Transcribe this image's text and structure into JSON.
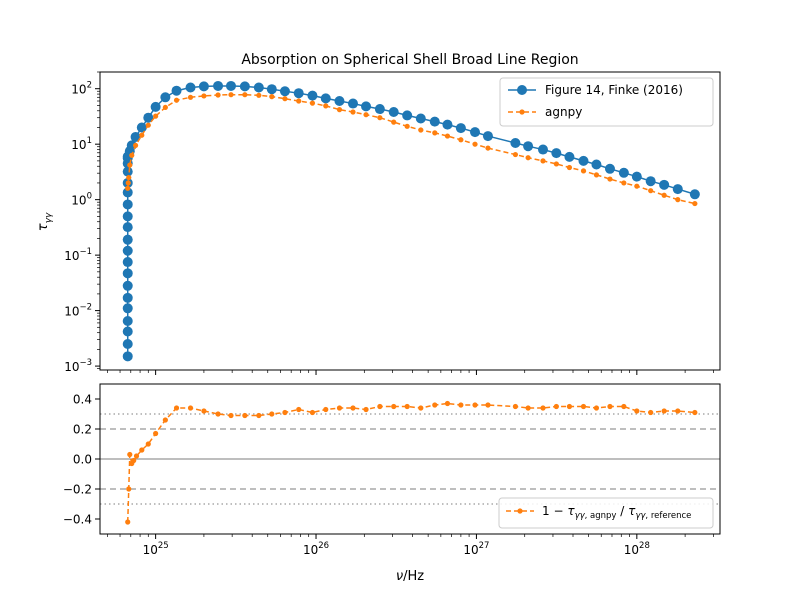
{
  "figure": {
    "title": "Absorption on Spherical Shell Broad Line Region",
    "ylabel_main": "τγγ",
    "xlabel_base": "ν",
    "xlabel_unit": "/Hz",
    "xtick_labels": [
      "10^25",
      "10^26",
      "10^27",
      "10^28"
    ],
    "ytick_labels_main": [
      "10^-3",
      "10^-2",
      "10^-1",
      "10^0",
      "10^1",
      "10^2"
    ],
    "ytick_labels_residual": [
      "0.4",
      "0.2",
      "0.0",
      "−0.2",
      "−0.4"
    ]
  },
  "colors": {
    "reference": "#1f77b4",
    "agnpy": "#ff7f0e",
    "zero_line": "#a9a9a9",
    "dashed_refs": "#a9a9a9",
    "dotted_refs": "#a9a9a9"
  },
  "legend": {
    "main": [
      "Figure 14, Finke (2016)",
      "agnpy"
    ],
    "residual": "1 − τγγ,agnpy / τγγ,reference",
    "main_position": "upper right",
    "residual_position": "lower right"
  },
  "chart_data": [
    {
      "type": "line",
      "title": "Absorption on Spherical Shell Broad Line Region",
      "xlabel": "ν / Hz",
      "ylabel": "τγγ",
      "xscale": "log",
      "yscale": "log",
      "xlim": [
        4.5e+24,
        3.3e+28
      ],
      "ylim": [
        0.00085,
        200
      ],
      "grid": false,
      "series": [
        {
          "name": "Figure 14, Finke (2016)",
          "style": "solid-circle",
          "x": [
            6.7e+24,
            6.7e+24,
            6.7e+24,
            6.7e+24,
            6.7e+24,
            6.7e+24,
            6.7e+24,
            6.7e+24,
            6.7e+24,
            6.7e+24,
            6.7e+24,
            6.7e+24,
            6.7e+24,
            6.7e+24,
            6.7e+24,
            6.7e+24,
            6.7e+24,
            6.7e+24,
            6.7e+24,
            6.7e+24,
            6.9e+24,
            7.1e+24,
            7.5e+24,
            8.2e+24,
            9e+24,
            1e+25,
            1.15e+25,
            1.35e+25,
            1.65e+25,
            2e+25,
            2.45e+25,
            2.95e+25,
            3.6e+25,
            4.4e+25,
            5.3e+25,
            6.4e+25,
            7.8e+25,
            9.5e+25,
            1.15e+26,
            1.4e+26,
            1.7e+26,
            2.05e+26,
            2.5e+26,
            3.05e+26,
            3.7e+26,
            4.5e+26,
            5.5e+26,
            6.6e+26,
            8e+26,
            9.8e+26,
            1.18e+27,
            1.75e+27,
            2.1e+27,
            2.6e+27,
            3.15e+27,
            3.8e+27,
            4.65e+27,
            5.6e+27,
            6.8e+27,
            8.3e+27,
            1e+28,
            1.22e+28,
            1.48e+28,
            1.8e+28,
            2.3e+28
          ],
          "y": [
            0.0015,
            0.0025,
            0.0042,
            0.0065,
            0.011,
            0.017,
            0.028,
            0.047,
            0.075,
            0.12,
            0.19,
            0.32,
            0.5,
            0.82,
            1.35,
            2.0,
            3.2,
            4.5,
            5.6,
            6.0,
            7.5,
            9.5,
            13.5,
            20,
            30,
            47,
            70,
            92,
            105,
            110,
            112,
            112,
            110,
            105,
            98,
            90,
            83,
            75,
            67,
            60,
            54,
            48,
            43,
            38,
            33,
            29,
            25.5,
            22.5,
            19.5,
            16.5,
            14,
            10.5,
            9.2,
            8.0,
            6.9,
            5.9,
            5.0,
            4.3,
            3.6,
            3.05,
            2.6,
            2.15,
            1.85,
            1.55,
            1.25
          ]
        },
        {
          "name": "agnpy",
          "style": "dashed-dot",
          "x": [
            6.7e+24,
            6.75e+24,
            6.8e+24,
            6.9e+24,
            7.1e+24,
            7.5e+24,
            8.2e+24,
            9e+24,
            1e+25,
            1.15e+25,
            1.35e+25,
            1.65e+25,
            2e+25,
            2.45e+25,
            2.95e+25,
            3.6e+25,
            4.4e+25,
            5.3e+25,
            6.4e+25,
            7.8e+25,
            9.5e+25,
            1.15e+26,
            1.4e+26,
            1.7e+26,
            2.05e+26,
            2.5e+26,
            3.05e+26,
            3.7e+26,
            4.5e+26,
            5.5e+26,
            6.6e+26,
            8e+26,
            9.8e+26,
            1.18e+27,
            1.75e+27,
            2.1e+27,
            2.6e+27,
            3.15e+27,
            3.8e+27,
            4.65e+27,
            5.6e+27,
            6.8e+27,
            8.3e+27,
            1e+28,
            1.22e+28,
            1.48e+28,
            1.8e+28,
            2.3e+28
          ],
          "y": [
            1.6,
            2.0,
            2.5,
            4.2,
            6.3,
            9.5,
            14.5,
            22,
            32,
            46,
            62,
            70,
            74,
            77,
            78,
            78,
            76,
            72,
            66,
            60,
            55,
            49,
            42,
            38,
            34,
            30,
            25,
            21,
            18,
            16,
            14,
            12,
            10,
            8.5,
            6.5,
            5.7,
            5.0,
            4.4,
            3.8,
            3.3,
            2.8,
            2.35,
            2.0,
            1.75,
            1.45,
            1.2,
            1.0,
            0.85
          ]
        }
      ]
    },
    {
      "type": "line",
      "xlabel": "ν / Hz",
      "xscale": "log",
      "xlim": [
        4.5e+24,
        3.3e+28
      ],
      "ylim": [
        -0.5,
        0.5
      ],
      "grid": false,
      "reference_lines": {
        "solid": [
          0.0
        ],
        "dashed": [
          0.2,
          -0.2
        ],
        "dotted": [
          0.3,
          -0.3
        ]
      },
      "series": [
        {
          "name": "1 − τγγ,agnpy / τγγ,reference",
          "style": "dashed-dot",
          "x": [
            6.7e+24,
            6.8e+24,
            6.9e+24,
            7.1e+24,
            7.3e+24,
            7.6e+24,
            8.2e+24,
            9e+24,
            1e+25,
            1.15e+25,
            1.35e+25,
            1.65e+25,
            2e+25,
            2.45e+25,
            2.95e+25,
            3.6e+25,
            4.4e+25,
            5.3e+25,
            6.4e+25,
            7.8e+25,
            9.5e+25,
            1.15e+26,
            1.4e+26,
            1.7e+26,
            2.05e+26,
            2.5e+26,
            3.05e+26,
            3.7e+26,
            4.5e+26,
            5.5e+26,
            6.6e+26,
            8e+26,
            9.8e+26,
            1.18e+27,
            1.75e+27,
            2.1e+27,
            2.6e+27,
            3.15e+27,
            3.8e+27,
            4.65e+27,
            5.6e+27,
            6.8e+27,
            8.3e+27,
            1e+28,
            1.22e+28,
            1.48e+28,
            1.8e+28,
            2.3e+28
          ],
          "y": [
            -0.42,
            -0.2,
            0.03,
            -0.03,
            -0.01,
            0.02,
            0.06,
            0.1,
            0.17,
            0.26,
            0.34,
            0.34,
            0.32,
            0.3,
            0.29,
            0.29,
            0.29,
            0.3,
            0.31,
            0.33,
            0.31,
            0.33,
            0.34,
            0.34,
            0.33,
            0.35,
            0.35,
            0.35,
            0.34,
            0.36,
            0.37,
            0.36,
            0.36,
            0.36,
            0.35,
            0.34,
            0.34,
            0.35,
            0.35,
            0.35,
            0.34,
            0.35,
            0.35,
            0.32,
            0.31,
            0.32,
            0.32,
            0.31
          ]
        }
      ]
    }
  ]
}
